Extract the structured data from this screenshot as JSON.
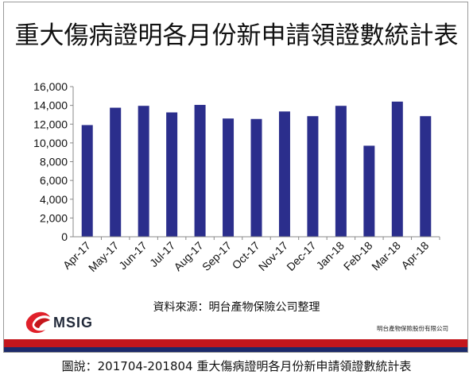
{
  "chart_data": {
    "type": "bar",
    "title": "重大傷病證明各月份新申請領證數統計表",
    "categories": [
      "Apr-17",
      "May-17",
      "Jun-17",
      "Jul-17",
      "Aug-17",
      "Sep-17",
      "Oct-17",
      "Nov-17",
      "Dec-17",
      "Jan-18",
      "Feb-18",
      "Mar-18",
      "Apr-18"
    ],
    "values": [
      11900,
      13750,
      13950,
      13250,
      14050,
      12600,
      12550,
      13350,
      12850,
      13950,
      9700,
      14400,
      12850
    ],
    "ylim": [
      0,
      16000
    ],
    "yticks": [
      "0",
      "2,000",
      "4,000",
      "6,000",
      "8,000",
      "10,000",
      "12,000",
      "14,000",
      "16,000"
    ],
    "grid": false,
    "bar_color": "#2b2e8c"
  },
  "source": "資料來源：明台產物保險公司整理",
  "logo": {
    "text": "MSIG",
    "icon": "msig-swoosh-icon",
    "color": "#e0202a"
  },
  "company": "明台產物保險股份有限公司",
  "caption": "圖說：201704-201804 重大傷病證明各月份新申請領證數統計表"
}
